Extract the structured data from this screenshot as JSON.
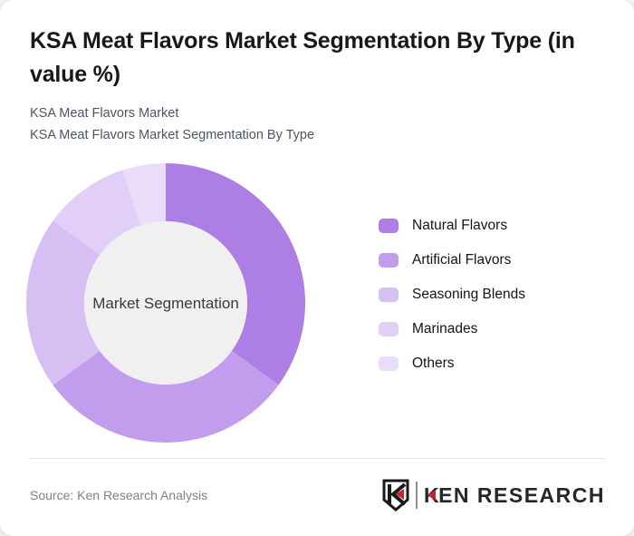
{
  "card": {
    "title": "KSA Meat Flavors Market Segmentation By Type (in value %)",
    "subtitle_line1": "KSA Meat Flavors Market",
    "subtitle_line2": "KSA Meat Flavors Market Segmentation By Type"
  },
  "chart_data": {
    "type": "pie",
    "variant": "donut",
    "title": "KSA Meat Flavors Market Segmentation By Type (in value %)",
    "labels": [
      "Natural Flavors",
      "Artificial Flavors",
      "Seasoning Blends",
      "Marinades",
      "Others"
    ],
    "values": [
      35,
      30,
      20,
      10,
      5
    ],
    "unit": "percent",
    "colors": [
      "#ad7ee4",
      "#c39ded",
      "#d8bff3",
      "#e2cff7",
      "#ebddf9"
    ],
    "center_label": "Market Segmentation",
    "center_fill": "#f0f0f0",
    "center_text_color": "#3a3a3a",
    "start_angle_deg": 0,
    "direction": "clockwise",
    "legend_position": "right"
  },
  "footer": {
    "source": "Source: Ken Research Analysis",
    "logo_text": "KEN RESEARCH",
    "logo_monogram": "K",
    "logo_accent_color": "#c0272d",
    "logo_ink_color": "#1a1a1e"
  }
}
